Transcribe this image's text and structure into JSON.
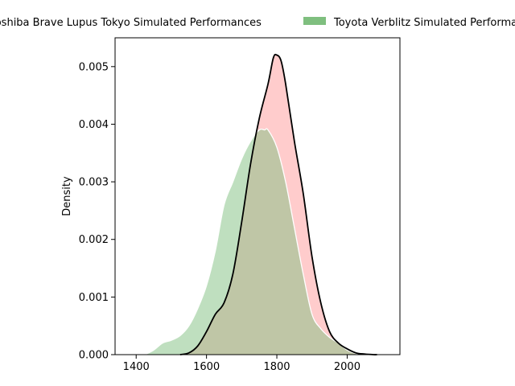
{
  "chart_data": {
    "type": "area",
    "xlabel": "",
    "ylabel": "Density",
    "xlim": [
      1340,
      2150
    ],
    "ylim": [
      0,
      0.0055
    ],
    "xticks": [
      1400,
      1600,
      1800,
      2000
    ],
    "yticks": [
      0.0,
      0.001,
      0.002,
      0.003,
      0.004,
      0.005
    ],
    "xtick_labels": [
      "1400",
      "1600",
      "1800",
      "2000"
    ],
    "ytick_labels": [
      "0.000",
      "0.001",
      "0.002",
      "0.003",
      "0.004",
      "0.005"
    ],
    "grid": false,
    "legend_position": "top",
    "series": [
      {
        "name": "Toshiba Brave Lupus Tokyo Simulated Performances",
        "fill_color": "#ff9999",
        "line_color": "#000000",
        "x": [
          1525,
          1550,
          1575,
          1600,
          1625,
          1650,
          1675,
          1700,
          1725,
          1750,
          1775,
          1790,
          1800,
          1812,
          1825,
          1850,
          1875,
          1900,
          1925,
          1950,
          1975,
          2000,
          2025,
          2050,
          2075,
          2085
        ],
        "y": [
          0.0,
          3e-05,
          0.00015,
          0.0004,
          0.0007,
          0.0009,
          0.0014,
          0.0023,
          0.0033,
          0.0041,
          0.0047,
          0.00515,
          0.0052,
          0.0051,
          0.0047,
          0.0037,
          0.0028,
          0.0017,
          0.0009,
          0.0004,
          0.0002,
          0.0001,
          3e-05,
          1e-05,
          0.0,
          0.0
        ]
      },
      {
        "name": "Toyota Verblitz Simulated Performances",
        "fill_color": "#7fbf7f",
        "line_color": "#ffffff",
        "x": [
          1425,
          1450,
          1475,
          1500,
          1525,
          1550,
          1575,
          1600,
          1625,
          1650,
          1675,
          1700,
          1725,
          1750,
          1765,
          1775,
          1800,
          1825,
          1850,
          1875,
          1900,
          1925,
          1950,
          1975,
          2000,
          2025,
          2050,
          2065
        ],
        "y": [
          0.0,
          8e-05,
          0.0002,
          0.00025,
          0.00033,
          0.0005,
          0.0008,
          0.0012,
          0.0018,
          0.0026,
          0.003,
          0.0034,
          0.0037,
          0.0039,
          0.0039,
          0.0039,
          0.0036,
          0.003,
          0.0022,
          0.0014,
          0.0007,
          0.00045,
          0.0003,
          0.0002,
          8e-05,
          2e-05,
          0.0,
          0.0
        ]
      }
    ]
  }
}
